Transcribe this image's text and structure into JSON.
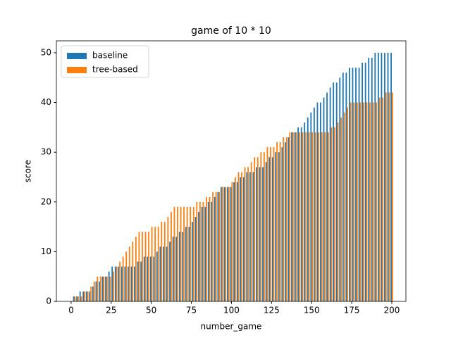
{
  "chart_data": {
    "type": "bar",
    "title": "game of 10 * 10",
    "x_label": "number_game",
    "y_label": "score",
    "x": [
      2,
      4,
      6,
      8,
      10,
      12,
      14,
      16,
      18,
      20,
      22,
      24,
      26,
      28,
      30,
      32,
      34,
      36,
      38,
      40,
      42,
      44,
      46,
      48,
      50,
      52,
      54,
      56,
      58,
      60,
      62,
      64,
      66,
      68,
      70,
      72,
      74,
      76,
      78,
      80,
      82,
      84,
      86,
      88,
      90,
      92,
      94,
      96,
      98,
      100,
      102,
      104,
      106,
      108,
      110,
      112,
      114,
      116,
      118,
      120,
      122,
      124,
      126,
      128,
      130,
      132,
      134,
      136,
      138,
      140,
      142,
      144,
      146,
      148,
      150,
      152,
      154,
      156,
      158,
      160,
      162,
      164,
      166,
      168,
      170,
      172,
      174,
      176,
      178,
      180,
      182,
      184,
      186,
      188,
      190,
      192,
      194,
      196,
      198,
      200
    ],
    "series": [
      {
        "name": "baseline",
        "color": "#1f77b4",
        "values": [
          1,
          1,
          2,
          2,
          2,
          2,
          3,
          4,
          4,
          5,
          5,
          6,
          7,
          7,
          7,
          7,
          7,
          7,
          7,
          7,
          8,
          8,
          9,
          9,
          9,
          9,
          10,
          11,
          11,
          11,
          12,
          13,
          13,
          14,
          14,
          15,
          15,
          16,
          17,
          18,
          19,
          19,
          20,
          20,
          21,
          22,
          23,
          23,
          23,
          23,
          24,
          24,
          25,
          25,
          26,
          26,
          26,
          27,
          27,
          27,
          28,
          29,
          29,
          30,
          30,
          31,
          32,
          33,
          34,
          34,
          35,
          35,
          36,
          37,
          38,
          39,
          40,
          40,
          41,
          42,
          43,
          44,
          44,
          45,
          46,
          46,
          47,
          47,
          47,
          47,
          48,
          48,
          49,
          49,
          50,
          50,
          50,
          50,
          50,
          50
        ]
      },
      {
        "name": "tree-based",
        "color": "#ff7f0e",
        "values": [
          1,
          1,
          1,
          2,
          2,
          3,
          4,
          5,
          5,
          5,
          5,
          5,
          6,
          7,
          8,
          9,
          10,
          11,
          12,
          13,
          14,
          14,
          14,
          14,
          15,
          15,
          15,
          16,
          16,
          17,
          18,
          19,
          19,
          19,
          19,
          19,
          19,
          19,
          20,
          20,
          20,
          21,
          21,
          22,
          22,
          22,
          23,
          23,
          23,
          24,
          25,
          26,
          26,
          27,
          27,
          28,
          29,
          29,
          30,
          30,
          31,
          31,
          31,
          32,
          32,
          33,
          33,
          34,
          34,
          34,
          34,
          34,
          34,
          34,
          34,
          34,
          34,
          34,
          34,
          34,
          35,
          35,
          36,
          37,
          38,
          39,
          40,
          40,
          40,
          40,
          40,
          40,
          40,
          40,
          40,
          41,
          41,
          42,
          42,
          42
        ]
      }
    ],
    "xlim": [
      -9.2,
      208.8
    ],
    "xticks": [
      0,
      25,
      50,
      75,
      100,
      125,
      150,
      175,
      200
    ],
    "ylim": [
      0,
      52.4
    ],
    "yticks": [
      0,
      10,
      20,
      30,
      40,
      50
    ],
    "legend": "upper left",
    "grid": false
  }
}
